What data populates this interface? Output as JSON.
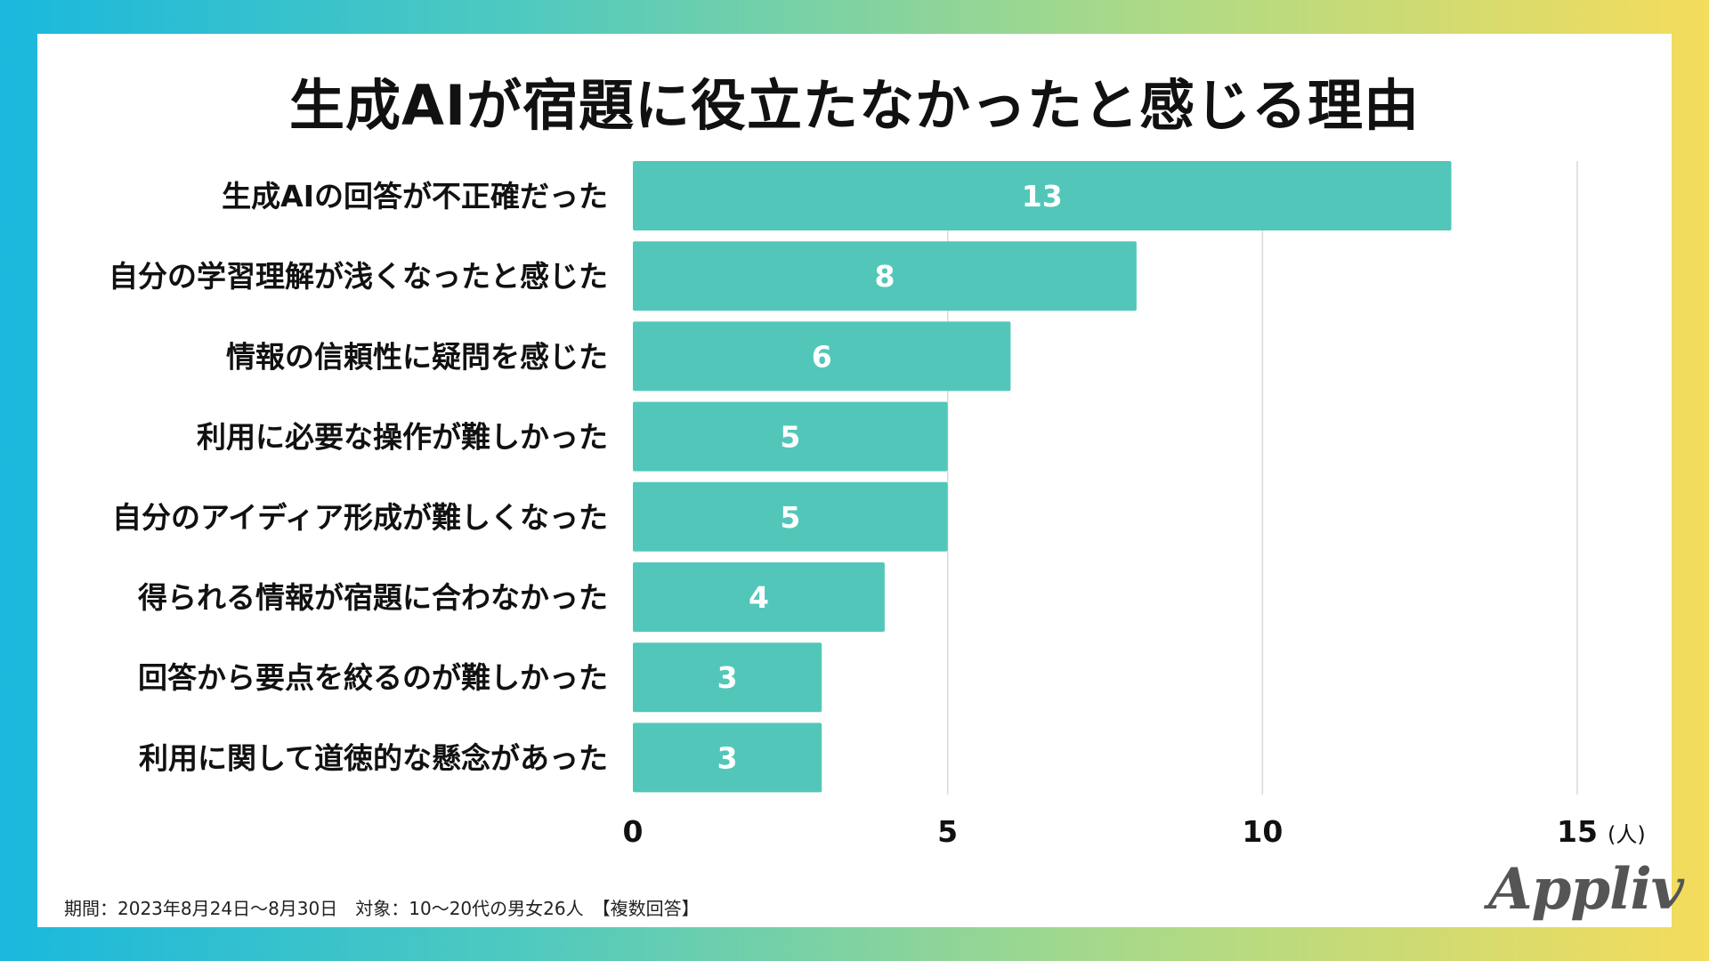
{
  "colors": {
    "bar": "#52c7b9",
    "grid": "#d9d9d9",
    "bar_label": "#ffffff",
    "text": "#111111"
  },
  "chart_data": {
    "type": "bar",
    "orientation": "horizontal",
    "title": "生成AIが宿題に役立たなかったと感じる理由",
    "categories": [
      "生成AIの回答が不正確だった",
      "自分の学習理解が浅くなったと感じた",
      "情報の信頼性に疑問を感じた",
      "利用に必要な操作が難しかった",
      "自分のアイディア形成が難しくなった",
      "得られる情報が宿題に合わなかった",
      "回答から要点を絞るのが難しかった",
      "利用に関して道徳的な懸念があった"
    ],
    "values": [
      13,
      8,
      6,
      5,
      5,
      4,
      3,
      3
    ],
    "xlim": [
      0,
      15
    ],
    "xticks": [
      "0",
      "5",
      "10",
      "15"
    ],
    "xunit": "(人)",
    "grid": true
  },
  "footnote": "期間：2023年8月24日〜8月30日　対象：10〜20代の男女26人　【複数回答】",
  "logo_text": "Appliv"
}
